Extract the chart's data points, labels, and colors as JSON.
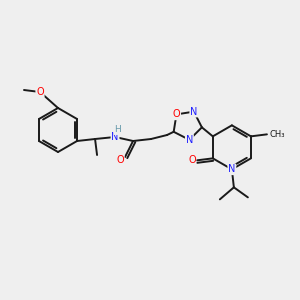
{
  "background_color": "#efefef",
  "bond_color": "#1a1a1a",
  "atom_colors": {
    "N": "#2020ff",
    "O": "#ff0000",
    "H": "#6699aa",
    "C": "#1a1a1a"
  },
  "figsize": [
    3.0,
    3.0
  ],
  "dpi": 100,
  "lw": 1.4,
  "fontsize": 7.0
}
